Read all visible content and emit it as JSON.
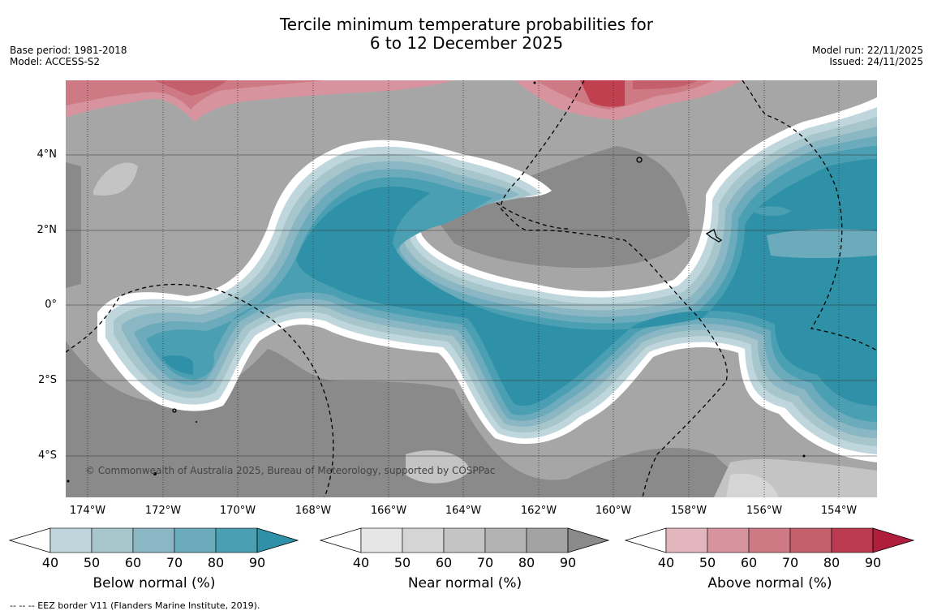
{
  "title": {
    "line1": "Tercile minimum temperature probabilities for",
    "line2": "6 to 12 December 2025"
  },
  "meta_left": {
    "base_period": "Base period: 1981-2018",
    "model": "Model: ACCESS-S2"
  },
  "meta_right": {
    "model_run": "Model run: 22/11/2025",
    "issued": "Issued: 24/11/2025"
  },
  "map": {
    "lat_labels": [
      "4°N",
      "2°N",
      "0°",
      "2°S",
      "4°S"
    ],
    "lon_labels": [
      "174°W",
      "172°W",
      "170°W",
      "168°W",
      "166°W",
      "164°W",
      "162°W",
      "160°W",
      "158°W",
      "156°W",
      "154°W"
    ],
    "copyright": "© Commonwealth of Australia 2025, Bureau of Meteorology, supported by COSPPac",
    "island_icon": "island-marker-icon",
    "eez_line_icon": "dashed-border-icon"
  },
  "colorbars": [
    {
      "label": "Below normal (%)",
      "ticks": [
        "40",
        "50",
        "60",
        "70",
        "80",
        "90"
      ],
      "colors": [
        "#bfd6dd",
        "#a6c6cc",
        "#8bb7c5",
        "#6cabbb",
        "#4a9fb3",
        "#2f91a7"
      ]
    },
    {
      "label": "Near normal (%)",
      "ticks": [
        "40",
        "50",
        "60",
        "70",
        "80",
        "90"
      ],
      "colors": [
        "#e6e6e6",
        "#d5d5d5",
        "#c4c4c4",
        "#b3b3b3",
        "#a3a3a3",
        "#8a8a8a"
      ]
    },
    {
      "label": "Above normal (%)",
      "ticks": [
        "40",
        "50",
        "60",
        "70",
        "80",
        "90"
      ],
      "colors": [
        "#e3b6bd",
        "#d8949e",
        "#cd7a84",
        "#c45f6c",
        "#bc3a50",
        "#b01e3d"
      ]
    }
  ],
  "footer": "--  --  -- EEZ border V11 (Flanders Marine Institute, 2019).",
  "colors": {
    "below_dark": "#2f91a7",
    "near_dark": "#888888",
    "above_dark": "#c0404f"
  }
}
